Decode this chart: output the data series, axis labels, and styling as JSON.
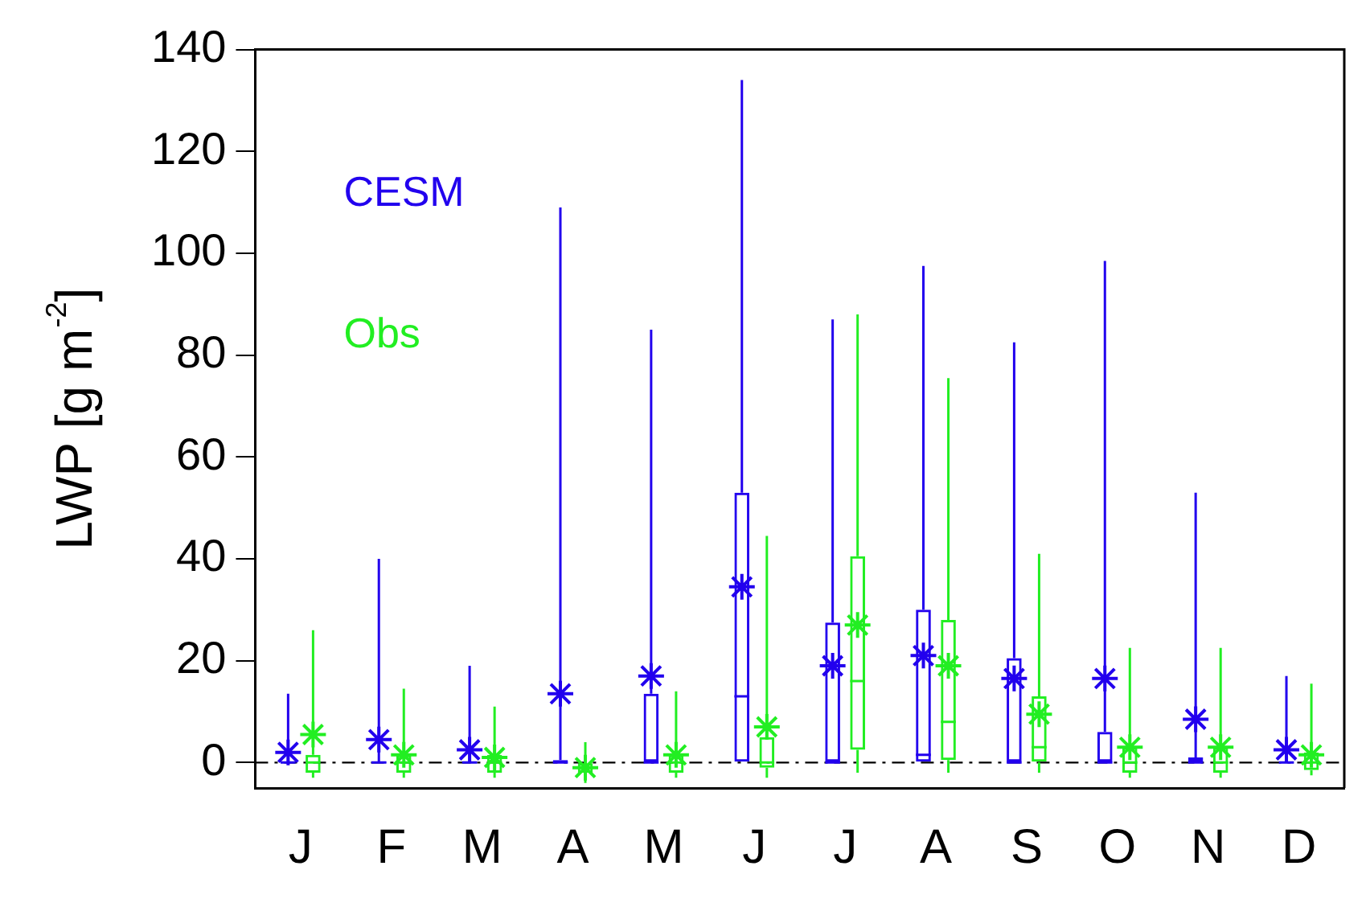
{
  "chart_data": {
    "type": "box",
    "ylabel": "LWP [g m$^{-2}$]",
    "categories": [
      "J",
      "F",
      "M",
      "A",
      "M",
      "J",
      "J",
      "A",
      "S",
      "O",
      "N",
      "D"
    ],
    "ylim": [
      -5,
      140
    ],
    "yticks": [
      0,
      20,
      40,
      60,
      80,
      100,
      120,
      140
    ],
    "grid": false,
    "legend": "top left",
    "marker": "star",
    "ref_lines": [
      {
        "axis": "y",
        "value": 0,
        "color": "#000000",
        "line_style": "dashdot"
      }
    ],
    "series": [
      {
        "name": "CESM",
        "color": "#2200ee",
        "boxes": [
          {
            "low": 0,
            "q1": 0,
            "median": 0,
            "q3": 0,
            "high": 13.5,
            "mean": 2
          },
          {
            "low": 0,
            "q1": 0,
            "median": 0,
            "q3": 0,
            "high": 40,
            "mean": 4.5
          },
          {
            "low": 0,
            "q1": 0,
            "median": 0,
            "q3": 0,
            "high": 19,
            "mean": 2.5
          },
          {
            "low": 0,
            "q1": 0,
            "median": 0,
            "q3": 0.5,
            "high": 109,
            "mean": 13.5
          },
          {
            "low": 0,
            "q1": 0,
            "median": 0,
            "q3": 13.5,
            "high": 85,
            "mean": 17
          },
          {
            "low": 0,
            "q1": 0,
            "median": 13,
            "q3": 53,
            "high": 134,
            "mean": 34.5
          },
          {
            "low": 0,
            "q1": 0,
            "median": 0,
            "q3": 27.5,
            "high": 87,
            "mean": 19
          },
          {
            "low": 0,
            "q1": 0,
            "median": 1.5,
            "q3": 30,
            "high": 97.5,
            "mean": 21
          },
          {
            "low": 0,
            "q1": 0,
            "median": 0,
            "q3": 20.5,
            "high": 82.5,
            "mean": 16.5
          },
          {
            "low": 0,
            "q1": 0,
            "median": 0,
            "q3": 6,
            "high": 98.5,
            "mean": 16.5
          },
          {
            "low": 0,
            "q1": 0,
            "median": 0,
            "q3": 1,
            "high": 53,
            "mean": 8.5
          },
          {
            "low": 0,
            "q1": 0,
            "median": 0,
            "q3": 0,
            "high": 17,
            "mean": 2.5
          }
        ]
      },
      {
        "name": "Obs",
        "color": "#22ee22",
        "boxes": [
          {
            "low": -3,
            "q1": -2,
            "median": 0,
            "q3": 1.5,
            "high": 26,
            "mean": 5.5
          },
          {
            "low": -3,
            "q1": -2,
            "median": 0,
            "q3": 1.5,
            "high": 14.5,
            "mean": 1.5
          },
          {
            "low": -3,
            "q1": -2,
            "median": 0,
            "q3": 1.5,
            "high": 11,
            "mean": 1
          },
          {
            "low": -4,
            "q1": -2,
            "median": -1,
            "q3": 0,
            "high": 4,
            "mean": -1
          },
          {
            "low": -3,
            "q1": -2,
            "median": 0,
            "q3": 1.5,
            "high": 14,
            "mean": 1.5
          },
          {
            "low": -3,
            "q1": -1,
            "median": 0,
            "q3": 5,
            "high": 44.5,
            "mean": 7
          },
          {
            "low": -2,
            "q1": 2.5,
            "median": 16,
            "q3": 40.5,
            "high": 88,
            "mean": 27
          },
          {
            "low": -2,
            "q1": 0.5,
            "median": 8,
            "q3": 28,
            "high": 75.5,
            "mean": 19
          },
          {
            "low": -2,
            "q1": 0,
            "median": 3,
            "q3": 13,
            "high": 41,
            "mean": 9.5
          },
          {
            "low": -3,
            "q1": -2,
            "median": 0,
            "q3": 3,
            "high": 22.5,
            "mean": 3
          },
          {
            "low": -3,
            "q1": -2,
            "median": 0,
            "q3": 3,
            "high": 22.5,
            "mean": 3
          },
          {
            "low": -2.5,
            "q1": -1.5,
            "median": 0,
            "q3": 2,
            "high": 15.5,
            "mean": 1.5
          }
        ]
      }
    ]
  }
}
